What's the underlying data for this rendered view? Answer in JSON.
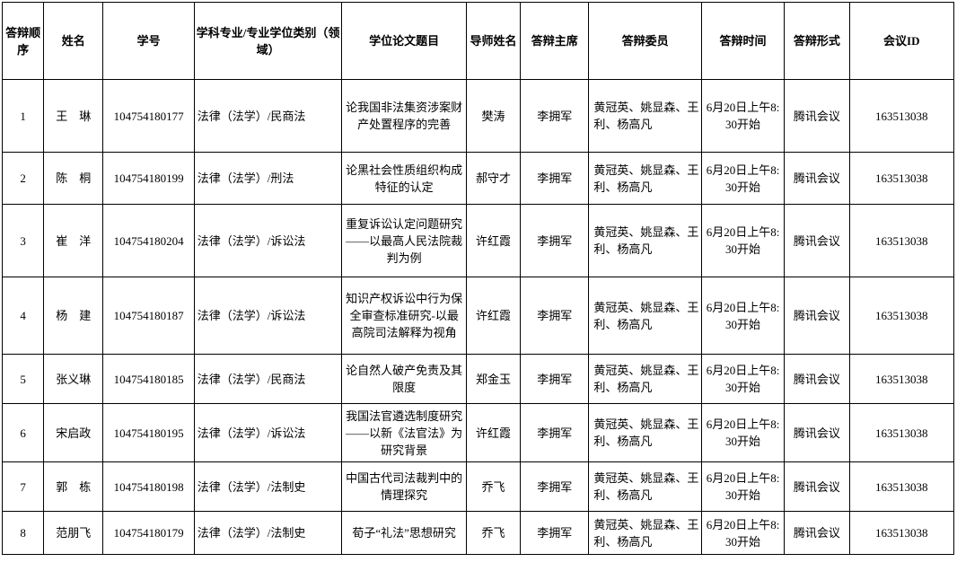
{
  "table": {
    "columns": [
      {
        "key": "order",
        "label": "答辩顺序"
      },
      {
        "key": "name",
        "label": "姓名"
      },
      {
        "key": "student_id",
        "label": "学号"
      },
      {
        "key": "major",
        "label": "学科专业/专业学位类别（领域）"
      },
      {
        "key": "thesis_title",
        "label": "学位论文题目"
      },
      {
        "key": "advisor",
        "label": "导师姓名"
      },
      {
        "key": "chair",
        "label": "答辩主席"
      },
      {
        "key": "committee",
        "label": "答辩委员"
      },
      {
        "key": "time",
        "label": "答辩时间"
      },
      {
        "key": "format",
        "label": "答辩形式"
      },
      {
        "key": "meeting_id",
        "label": "会议ID"
      }
    ],
    "rows": [
      {
        "order": "1",
        "name": "王　琳",
        "student_id": "104754180177",
        "major": "法律（法学）/民商法",
        "thesis_title": "论我国非法集资涉案财产处置程序的完善",
        "advisor": "樊涛",
        "chair": "李拥军",
        "committee": "黄冠英、姚显森、王　利、杨高凡",
        "time": "6月20日上午8:30开始",
        "format": "腾讯会议",
        "meeting_id": "163513038"
      },
      {
        "order": "2",
        "name": "陈　桐",
        "student_id": "104754180199",
        "major": "法律（法学）/刑法",
        "thesis_title": "论黑社会性质组织构成特征的认定",
        "advisor": "郝守才",
        "chair": "李拥军",
        "committee": "黄冠英、姚显森、王　利、杨高凡",
        "time": "6月20日上午8:30开始",
        "format": "腾讯会议",
        "meeting_id": "163513038"
      },
      {
        "order": "3",
        "name": "崔　洋",
        "student_id": "104754180204",
        "major": "法律（法学）/诉讼法",
        "thesis_title": "重复诉讼认定问题研究——以最高人民法院裁判为例",
        "advisor": "许红霞",
        "chair": "李拥军",
        "committee": "黄冠英、姚显森、王　利、杨高凡",
        "time": "6月20日上午8:30开始",
        "format": "腾讯会议",
        "meeting_id": "163513038"
      },
      {
        "order": "4",
        "name": "杨　建",
        "student_id": "104754180187",
        "major": "法律（法学）/诉讼法",
        "thesis_title": "知识产权诉讼中行为保全审查标准研究-以最高院司法解释为视角",
        "advisor": "许红霞",
        "chair": "李拥军",
        "committee": "黄冠英、姚显森、王　利、杨高凡",
        "time": "6月20日上午8:30开始",
        "format": "腾讯会议",
        "meeting_id": "163513038"
      },
      {
        "order": "5",
        "name": "张义琳",
        "student_id": "104754180185",
        "major": "法律（法学）/民商法",
        "thesis_title": "论自然人破产免责及其限度",
        "advisor": "郑金玉",
        "chair": "李拥军",
        "committee": "黄冠英、姚显森、王　利、杨高凡",
        "time": "6月20日上午8:30开始",
        "format": "腾讯会议",
        "meeting_id": "163513038"
      },
      {
        "order": "6",
        "name": "宋启政",
        "student_id": "104754180195",
        "major": "法律（法学）/诉讼法",
        "thesis_title": "我国法官遴选制度研究——以新《法官法》为研究背景",
        "advisor": "许红霞",
        "chair": "李拥军",
        "committee": "黄冠英、姚显森、王　利、杨高凡",
        "time": "6月20日上午8:30开始",
        "format": "腾讯会议",
        "meeting_id": "163513038"
      },
      {
        "order": "7",
        "name": "郭　栋",
        "student_id": "104754180198",
        "major": "法律（法学）/法制史",
        "thesis_title": "中国古代司法裁判中的情理探究",
        "advisor": "乔飞",
        "chair": "李拥军",
        "committee": "黄冠英、姚显森、王　利、杨高凡",
        "time": "6月20日上午8:30开始",
        "format": "腾讯会议",
        "meeting_id": "163513038"
      },
      {
        "order": "8",
        "name": "范朋飞",
        "student_id": "104754180179",
        "major": "法律（法学）/法制史",
        "thesis_title": "荀子“礼法”思想研究",
        "advisor": "乔飞",
        "chair": "李拥军",
        "committee": "黄冠英、姚显森、王　利、杨高凡",
        "time": "6月20日上午8:30开始",
        "format": "腾讯会议",
        "meeting_id": "163513038"
      }
    ]
  }
}
